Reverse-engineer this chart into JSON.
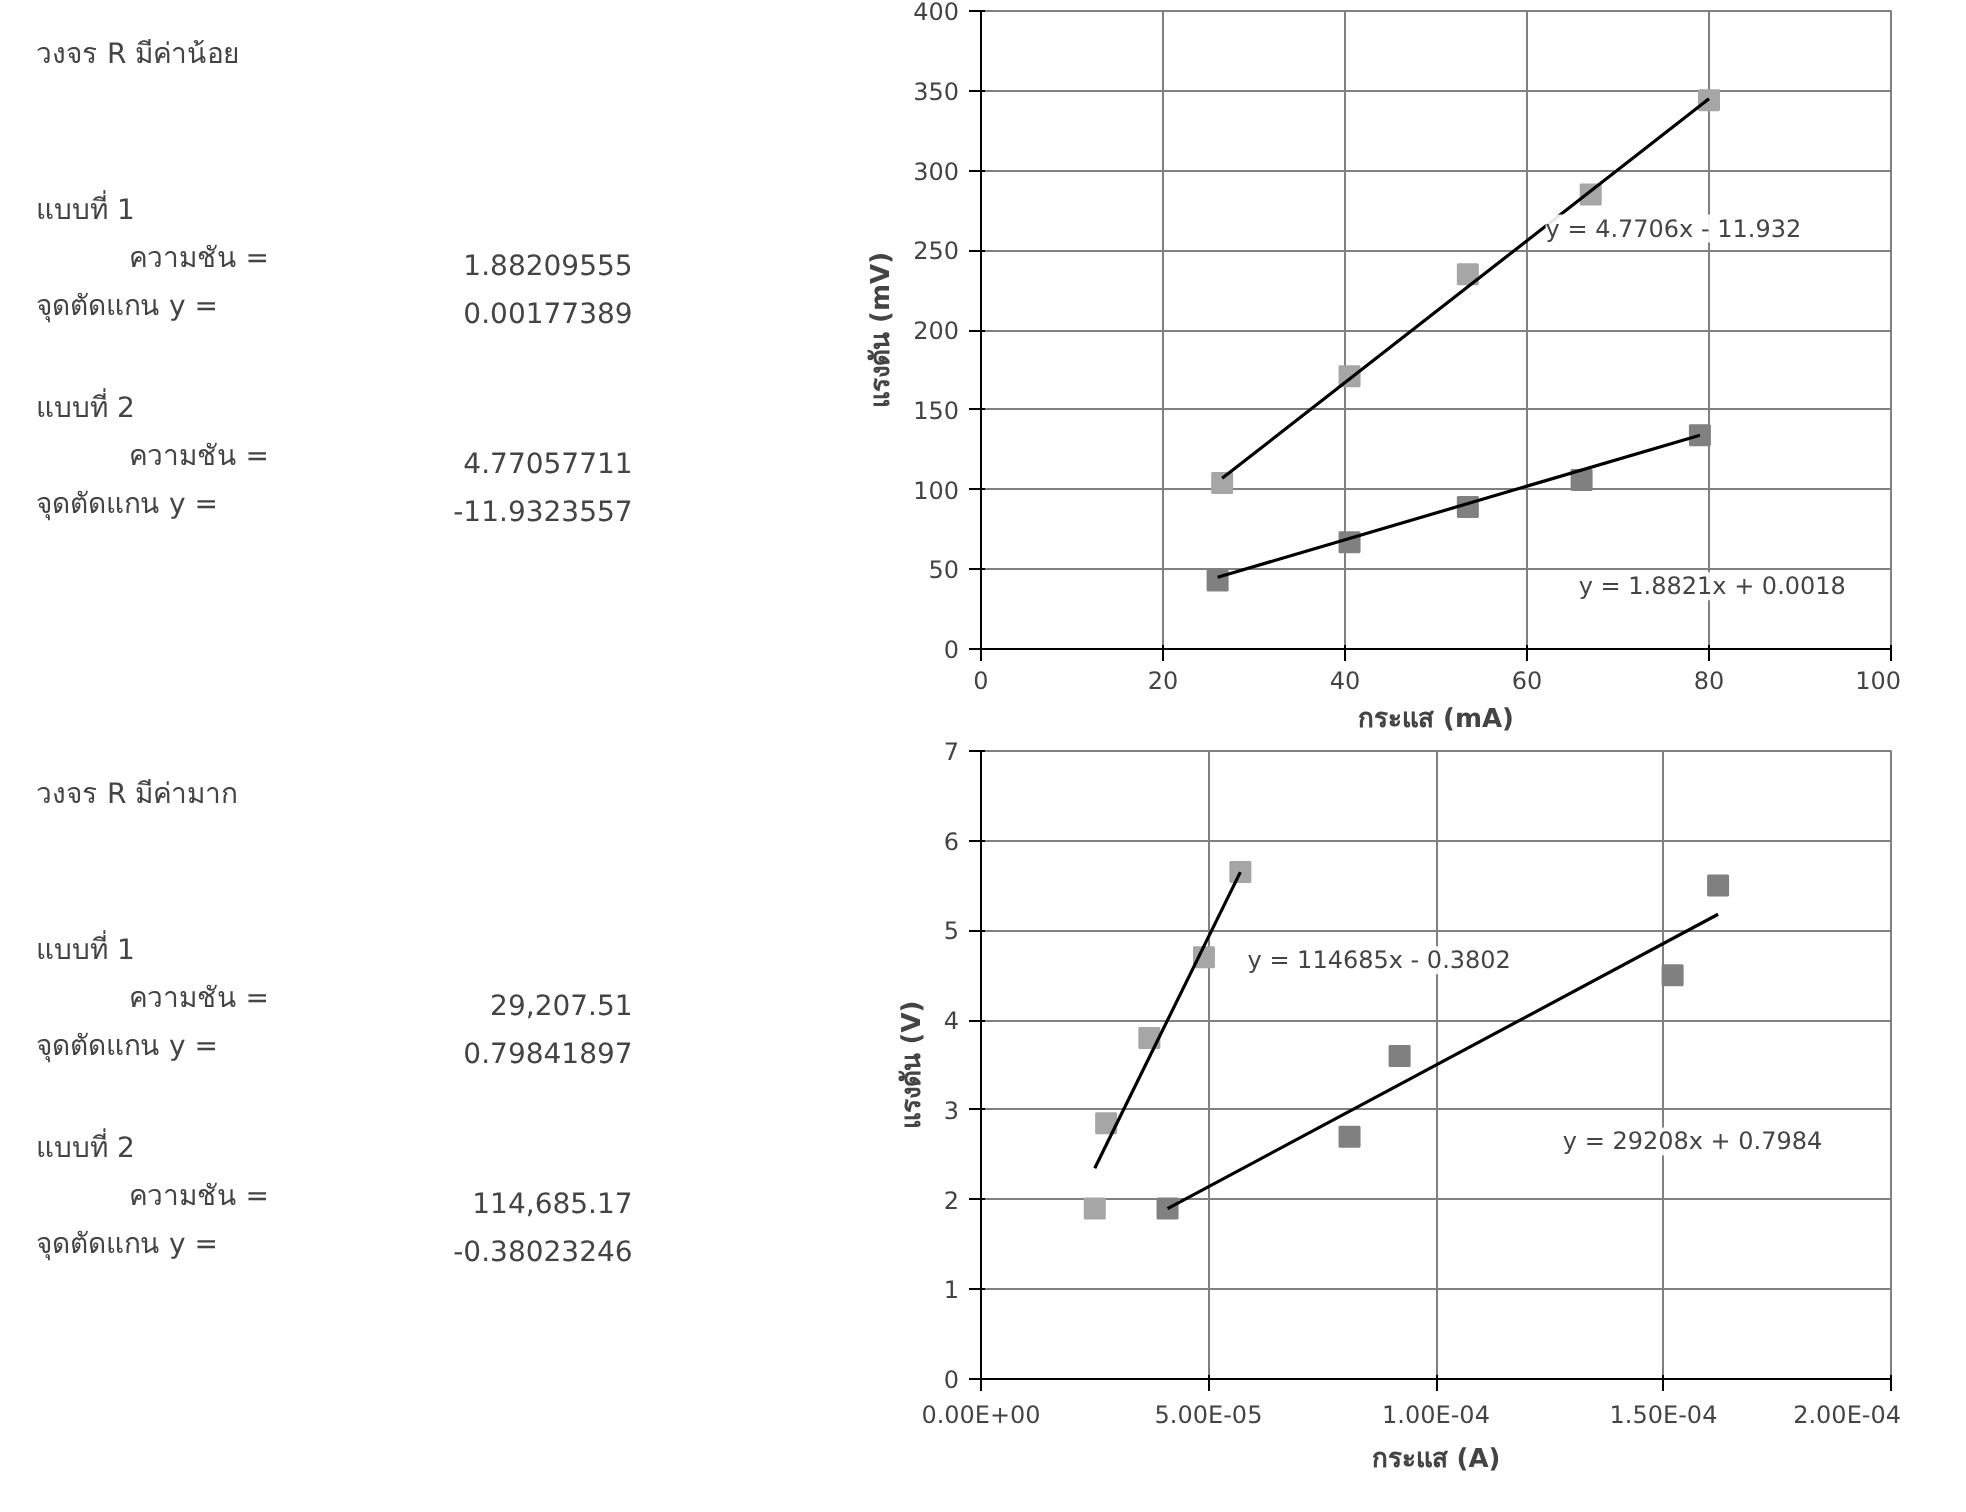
{
  "chart_data": [
    {
      "type": "other",
      "title": "วงจร R มีค่าน้อย",
      "annotations": [
        "แบบที่ 1",
        "ความชัน =",
        "1.88209555",
        "จุดตัดแกน y  =",
        "0.00177389",
        "แบบที่ 2",
        "ความชัน =",
        "4.77057711",
        "จุดตัดแกน y  =",
        "-11.9323557"
      ]
    },
    {
      "type": "scatter",
      "xlabel": "กระแส (mA)",
      "ylabel": "แรงดัน (mV)",
      "xlim": [
        0,
        100
      ],
      "ylim": [
        0,
        400
      ],
      "xticks": [
        0,
        20,
        40,
        60,
        80,
        100
      ],
      "yticks": [
        0,
        50,
        100,
        150,
        200,
        250,
        300,
        350,
        400
      ],
      "grid": true,
      "marker": "square",
      "series": [
        {
          "type": "scatter",
          "color": "#a6a6a6",
          "x": [
            26.5,
            40.5,
            53.5,
            67,
            80
          ],
          "values": [
            104,
            171,
            235,
            285,
            344
          ]
        },
        {
          "type": "scatter",
          "color": "#808080",
          "x": [
            26,
            40.5,
            53.5,
            66,
            79
          ],
          "values": [
            43,
            67,
            89,
            106,
            134
          ]
        },
        {
          "type": "line",
          "marker": "none",
          "color": "#000000",
          "x": [
            26.5,
            80
          ],
          "values": [
            107,
            345
          ]
        },
        {
          "type": "line",
          "marker": "none",
          "color": "#000000",
          "x": [
            26,
            79
          ],
          "values": [
            45,
            134
          ]
        }
      ],
      "annotations": [
        "y = 4.7706x - 11.932",
        "y = 1.8821x + 0.0018"
      ]
    },
    {
      "type": "other",
      "title": "วงจร R มีค่ามาก",
      "annotations": [
        "แบบที่ 1",
        "ความชัน =",
        "29,207.51",
        "จุดตัดแกน y  =",
        "0.79841897",
        "แบบที่ 2",
        "ความชัน =",
        "114,685.17",
        "จุดตัดแกน y  =",
        "-0.38023246"
      ]
    },
    {
      "type": "scatter",
      "xlabel": "กระแส (A)",
      "ylabel": "แรงดัน (V)",
      "xlim": [
        0,
        0.0002
      ],
      "ylim": [
        0,
        7
      ],
      "xticks": [
        {
          "value": 0,
          "label": "0.00E+00"
        },
        {
          "value": 5e-05,
          "label": "5.00E-05"
        },
        {
          "value": 0.0001,
          "label": "1.00E-04"
        },
        {
          "value": 0.00015,
          "label": "1.50E-04"
        },
        {
          "value": 0.0002,
          "label": "2.00E-04"
        }
      ],
      "yticks": [
        0,
        1,
        2,
        3,
        4,
        5,
        6,
        7
      ],
      "grid": true,
      "marker": "square",
      "series": [
        {
          "type": "scatter",
          "color": "#a6a6a6",
          "x": [
            2.5e-05,
            2.75e-05,
            3.7e-05,
            4.9e-05,
            5.7e-05
          ],
          "values": [
            1.9,
            2.85,
            3.8,
            4.7,
            5.65
          ]
        },
        {
          "type": "scatter",
          "color": "#808080",
          "x": [
            4.1e-05,
            8.1e-05,
            9.2e-05,
            0.000152,
            0.000162
          ],
          "values": [
            1.9,
            2.7,
            3.6,
            4.5,
            5.5
          ]
        },
        {
          "type": "line",
          "marker": "none",
          "color": "#000000",
          "x": [
            2.5e-05,
            5.7e-05
          ],
          "values": [
            2.35,
            5.65
          ]
        },
        {
          "type": "line",
          "marker": "none",
          "color": "#000000",
          "x": [
            4.1e-05,
            0.000162
          ],
          "values": [
            1.9,
            5.18
          ]
        }
      ],
      "annotations": [
        "y = 114685x - 0.3802",
        "y = 29208x + 0.7984"
      ]
    }
  ]
}
